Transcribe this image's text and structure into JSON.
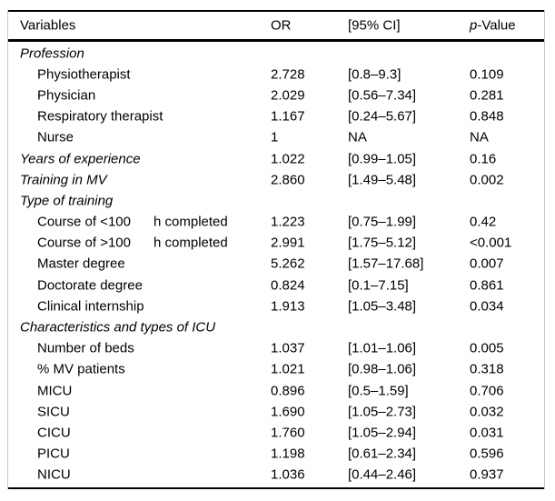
{
  "figure": {
    "kind": "statistical-results-table",
    "colors": {
      "text": "#000000",
      "horizontal_rules": "#000000",
      "side_borders": "#c9c9c9",
      "background": "#ffffff"
    }
  },
  "table": {
    "header": {
      "variables": "Variables",
      "or": "OR",
      "ci": "[95% CI]",
      "p_prefix": "p",
      "p_suffix": "-Value"
    },
    "rows": [
      {
        "label": "Profession",
        "section": true
      },
      {
        "label": "Physiotherapist",
        "or": "2.728",
        "ci": "[0.8–9.3]",
        "p": "0.109"
      },
      {
        "label": "Physician",
        "or": "2.029",
        "ci": "[0.56–7.34]",
        "p": "0.281"
      },
      {
        "label": "Respiratory therapist",
        "or": "1.167",
        "ci": "[0.24–5.67]",
        "p": "0.848"
      },
      {
        "label": "Nurse",
        "or": "1",
        "ci": "NA",
        "p": "NA"
      },
      {
        "label": "Years of experience",
        "section": true,
        "or": "1.022",
        "ci": "[0.99–1.05]",
        "p": "0.16"
      },
      {
        "label": "Training in MV",
        "section": true,
        "or": "2.860",
        "ci": "[1.49–5.48]",
        "p": "0.002"
      },
      {
        "label": "Type of training",
        "section": true
      },
      {
        "label": "Course of <100",
        "label2": "h completed",
        "or": "1.223",
        "ci": "[0.75–1.99]",
        "p": "0.42"
      },
      {
        "label": "Course of >100",
        "label2": "h completed",
        "or": "2.991",
        "ci": "[1.75–5.12]",
        "p": "<0.001"
      },
      {
        "label": "Master degree",
        "or": "5.262",
        "ci": "[1.57–17.68]",
        "p": "0.007"
      },
      {
        "label": "Doctorate degree",
        "or": "0.824",
        "ci": "[0.1–7.15]",
        "p": "0.861"
      },
      {
        "label": "Clinical internship",
        "or": "1.913",
        "ci": "[1.05–3.48]",
        "p": "0.034"
      },
      {
        "label": "Characteristics and types of ICU",
        "section": true
      },
      {
        "label": "Number of beds",
        "or": "1.037",
        "ci": "[1.01–1.06]",
        "p": "0.005"
      },
      {
        "label": "% MV patients",
        "or": "1.021",
        "ci": "[0.98–1.06]",
        "p": "0.318"
      },
      {
        "label": "MICU",
        "or": "0.896",
        "ci": "[0.5–1.59]",
        "p": "0.706"
      },
      {
        "label": "SICU",
        "or": "1.690",
        "ci": "[1.05–2.73]",
        "p": "0.032"
      },
      {
        "label": "CICU",
        "or": "1.760",
        "ci": "[1.05–2.94]",
        "p": "0.031"
      },
      {
        "label": "PICU",
        "or": "1.198",
        "ci": "[0.61–2.34]",
        "p": "0.596"
      },
      {
        "label": "NICU",
        "or": "1.036",
        "ci": "[0.44–2.46]",
        "p": "0.937"
      }
    ]
  }
}
